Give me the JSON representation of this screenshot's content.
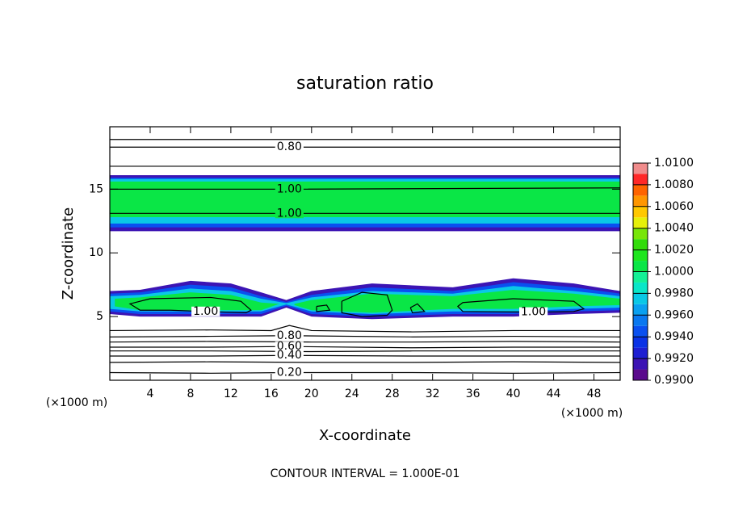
{
  "chart_data": {
    "type": "contour",
    "title": "saturation ratio",
    "x_label": "X-coordinate",
    "y_label": "Z-coordinate",
    "x_unit": "(×1000 m)",
    "x_unit_right": "(×1000 m)",
    "footer": "CONTOUR INTERVAL = 1.000E-01",
    "xlim": [
      0,
      50.6
    ],
    "ylim": [
      0,
      19.9
    ],
    "xticks": [
      4,
      8,
      12,
      16,
      20,
      24,
      28,
      32,
      36,
      40,
      44,
      48
    ],
    "yticks": [
      5,
      10,
      15
    ],
    "colorbar": {
      "clim": [
        0.99,
        1.01
      ],
      "colors": [
        "#5a0a8c",
        "#3c14b4",
        "#1e1ed2",
        "#0a32e6",
        "#0a50f0",
        "#0a78f0",
        "#0aa0f0",
        "#0ac8e6",
        "#0ae6c8",
        "#14f096",
        "#0ae646",
        "#1ee61e",
        "#32dc0a",
        "#78e60a",
        "#e6f00a",
        "#ffc800",
        "#ff9600",
        "#ff6400",
        "#ff2828",
        "#f08c8c"
      ],
      "ticks": [
        {
          "value": 0.99,
          "label": "0.9900"
        },
        {
          "value": 0.992,
          "label": "0.9920"
        },
        {
          "value": 0.994,
          "label": "0.9940"
        },
        {
          "value": 0.996,
          "label": "0.9960"
        },
        {
          "value": 0.998,
          "label": "0.9980"
        },
        {
          "value": 1.0,
          "label": "1.0000"
        },
        {
          "value": 1.002,
          "label": "1.0020"
        },
        {
          "value": 1.004,
          "label": "1.0040"
        },
        {
          "value": 1.006,
          "label": "1.0060"
        },
        {
          "value": 1.008,
          "label": "1.0080"
        },
        {
          "value": 1.01,
          "label": "1.0100"
        }
      ]
    },
    "regions": [
      {
        "level": 0.9915,
        "x": [
          0,
          50.6,
          50.6,
          0
        ],
        "z": [
          16.1,
          16.1,
          11.7,
          11.7
        ]
      },
      {
        "level": 0.9945,
        "x": [
          0,
          50.6,
          50.6,
          0
        ],
        "z": [
          15.9,
          15.9,
          12.0,
          12.0
        ]
      },
      {
        "level": 0.9975,
        "x": [
          0,
          50.6,
          50.6,
          0
        ],
        "z": [
          15.8,
          15.8,
          12.3,
          12.3
        ]
      },
      {
        "level": 1.0005,
        "x": [
          0,
          50.6,
          50.6,
          0
        ],
        "z": [
          15.6,
          15.6,
          12.8,
          12.8
        ]
      },
      {
        "level": 0.9915,
        "x": [
          0,
          3,
          8,
          12,
          15,
          17.5,
          20,
          26,
          34,
          40,
          46,
          50.6,
          50.6,
          46,
          40,
          34,
          26,
          20,
          17.5,
          15,
          8,
          3,
          0
        ],
        "z": [
          7.0,
          7.1,
          7.8,
          7.6,
          6.9,
          6.3,
          7.0,
          7.6,
          7.3,
          8.0,
          7.6,
          7.0,
          5.3,
          5.2,
          5.0,
          5.0,
          4.8,
          5.0,
          5.7,
          5.0,
          5.0,
          5.0,
          5.2
        ]
      },
      {
        "level": 0.9945,
        "x": [
          0,
          3,
          8,
          12,
          15,
          17.5,
          20,
          26,
          34,
          40,
          46,
          50.6,
          50.6,
          46,
          40,
          34,
          26,
          20,
          17.5,
          15,
          8,
          3,
          0
        ],
        "z": [
          6.8,
          6.9,
          7.5,
          7.3,
          6.6,
          6.15,
          6.7,
          7.3,
          7.0,
          7.7,
          7.3,
          6.8,
          5.5,
          5.4,
          5.2,
          5.2,
          5.0,
          5.2,
          5.85,
          5.2,
          5.2,
          5.2,
          5.4
        ]
      },
      {
        "level": 0.9975,
        "x": [
          0,
          3,
          8,
          12,
          15,
          17.5,
          20,
          26,
          34,
          40,
          46,
          50.6,
          50.6,
          46,
          40,
          34,
          26,
          20,
          17.5,
          15,
          8,
          3,
          0
        ],
        "z": [
          6.6,
          6.7,
          7.2,
          7.0,
          6.4,
          6.05,
          6.5,
          7.0,
          6.8,
          7.4,
          7.0,
          6.6,
          5.7,
          5.6,
          5.4,
          5.4,
          5.2,
          5.4,
          5.95,
          5.4,
          5.4,
          5.4,
          5.6
        ]
      },
      {
        "level": 1.0005,
        "x": [
          0.5,
          3,
          8,
          12,
          15,
          16.8,
          15,
          8,
          3,
          0.5
        ],
        "z": [
          6.4,
          6.5,
          6.9,
          6.7,
          6.1,
          6.0,
          5.5,
          5.5,
          5.5,
          5.8
        ]
      },
      {
        "level": 1.0005,
        "x": [
          18.3,
          20,
          26,
          34,
          40,
          46,
          50.6,
          50.6,
          46,
          40,
          34,
          26,
          20,
          18.3
        ],
        "z": [
          6.0,
          6.3,
          6.8,
          6.6,
          7.1,
          6.8,
          6.4,
          5.9,
          5.8,
          5.6,
          5.6,
          5.3,
          5.5,
          5.9
        ]
      }
    ],
    "contours": [
      {
        "value": 0.9,
        "x": [
          0,
          25,
          50.6
        ],
        "z": [
          18.9,
          18.9,
          18.9
        ]
      },
      {
        "value": 0.8,
        "label": "0.80",
        "x": [
          0,
          17.8,
          50.6
        ],
        "z": [
          18.3,
          18.3,
          18.3
        ]
      },
      {
        "value": 0.9,
        "x": [
          0,
          25,
          50.6
        ],
        "z": [
          16.8,
          16.8,
          16.8
        ]
      },
      {
        "value": 1.0,
        "label": "1.00",
        "x": [
          0,
          17.8,
          50.6
        ],
        "z": [
          15.0,
          15.0,
          15.1
        ]
      },
      {
        "value": 1.0,
        "label": "1.00",
        "x": [
          0,
          17.8,
          50.6
        ],
        "z": [
          13.1,
          13.1,
          13.1
        ]
      },
      {
        "value": 1.0,
        "label": "1.00",
        "x": [
          4,
          2,
          3,
          6,
          9.5,
          13.5,
          14,
          13,
          10,
          4
        ],
        "z": [
          6.4,
          6.0,
          5.5,
          5.5,
          5.4,
          5.3,
          5.5,
          6.2,
          6.5,
          6.4
        ]
      },
      {
        "value": 1.0,
        "x": [
          20.5,
          21.5,
          21.8,
          20.5,
          20.5
        ],
        "z": [
          5.8,
          5.9,
          5.5,
          5.4,
          5.8
        ]
      },
      {
        "value": 1.0,
        "x": [
          23,
          25,
          27.5,
          28,
          27.5,
          25,
          23,
          23
        ],
        "z": [
          6.2,
          6.9,
          6.7,
          5.5,
          5.1,
          5.0,
          5.3,
          6.2
        ]
      },
      {
        "value": 1.0,
        "x": [
          29.8,
          30.5,
          31.2,
          30,
          29.8
        ],
        "z": [
          5.7,
          6.0,
          5.4,
          5.3,
          5.7
        ]
      },
      {
        "value": 1.0,
        "label": "1.00",
        "x": [
          40,
          35,
          34.5,
          35,
          42,
          46,
          47,
          46,
          40
        ],
        "z": [
          6.4,
          6.1,
          5.8,
          5.4,
          5.35,
          5.4,
          5.6,
          6.2,
          6.4
        ]
      },
      {
        "value": 0.9,
        "x": [
          0,
          10,
          16,
          17.8,
          20,
          30,
          40,
          50.6
        ],
        "z": [
          3.9,
          3.95,
          3.9,
          4.3,
          3.9,
          3.8,
          3.9,
          3.9
        ]
      },
      {
        "value": 0.8,
        "label": "0.80",
        "x": [
          0,
          10,
          17.8,
          30,
          40,
          50.6
        ],
        "z": [
          3.4,
          3.45,
          3.5,
          3.4,
          3.45,
          3.4
        ]
      },
      {
        "value": 0.7,
        "x": [
          0,
          10,
          20,
          30,
          40,
          50.6
        ],
        "z": [
          3.0,
          3.05,
          3.0,
          3.0,
          3.05,
          3.0
        ]
      },
      {
        "value": 0.6,
        "label": "0.60",
        "x": [
          0,
          10,
          17.8,
          30,
          40,
          50.6
        ],
        "z": [
          2.6,
          2.6,
          2.65,
          2.55,
          2.6,
          2.6
        ]
      },
      {
        "value": 0.5,
        "x": [
          0,
          10,
          20,
          30,
          40,
          50.6
        ],
        "z": [
          2.3,
          2.3,
          2.25,
          2.3,
          2.3,
          2.3
        ]
      },
      {
        "value": 0.4,
        "label": "0.40",
        "x": [
          0,
          10,
          17.8,
          30,
          40,
          50.6
        ],
        "z": [
          1.9,
          1.9,
          1.95,
          1.9,
          1.9,
          1.9
        ]
      },
      {
        "value": 0.3,
        "x": [
          0,
          10,
          20,
          30,
          40,
          50.6
        ],
        "z": [
          1.4,
          1.45,
          1.4,
          1.4,
          1.45,
          1.4
        ]
      },
      {
        "value": 0.2,
        "label": "0.20",
        "x": [
          0,
          10,
          17.8,
          30,
          40,
          50.6
        ],
        "z": [
          0.6,
          0.55,
          0.6,
          0.6,
          0.55,
          0.6
        ]
      }
    ]
  }
}
